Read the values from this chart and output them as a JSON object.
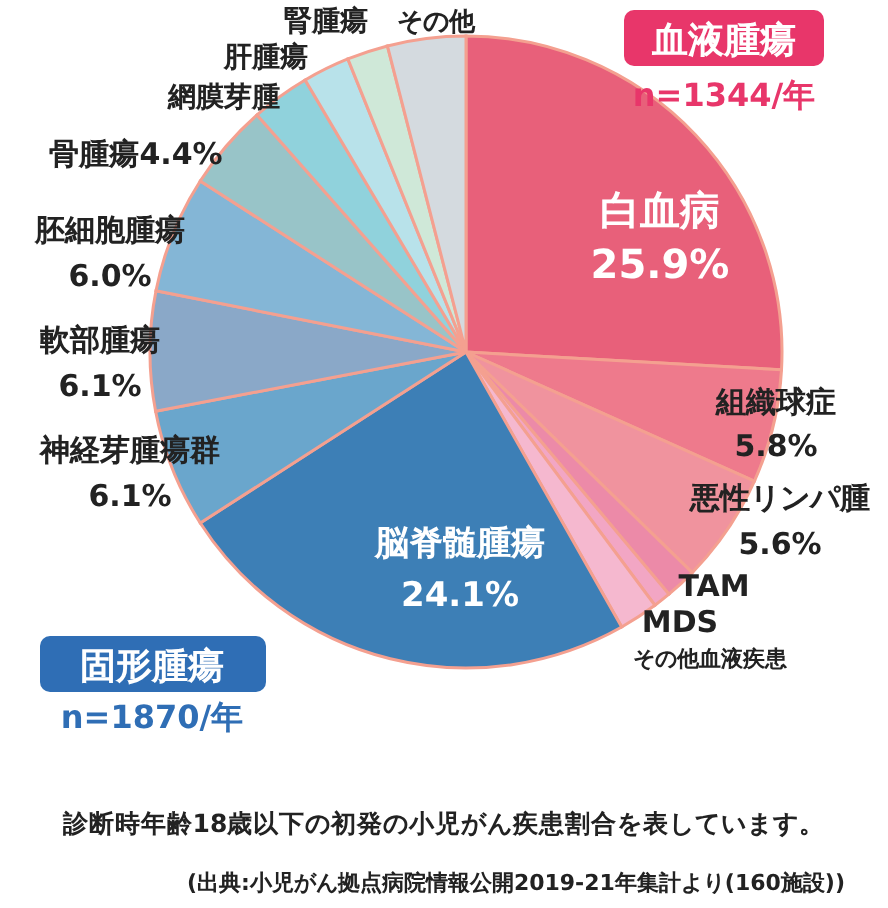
{
  "chart_data": {
    "type": "pie",
    "categories": [
      "白血病",
      "組織球症",
      "悪性リンパ腫",
      "TAM",
      "MDS",
      "その他血液疾患",
      "脳脊髄腫瘍",
      "神経芽腫瘍群",
      "軟部腫瘍",
      "胚細胞腫瘍",
      "骨腫瘍",
      "網膜芽腫",
      "肝腫瘍",
      "腎腫瘍",
      "その他"
    ],
    "values": [
      25.9,
      5.8,
      5.6,
      1.6,
      0.9,
      2.0,
      24.1,
      6.1,
      6.1,
      6.0,
      4.4,
      3.0,
      2.4,
      2.1,
      4.0
    ],
    "value_labels": [
      "25.9%",
      "5.8%",
      "5.6%",
      null,
      null,
      null,
      "24.1%",
      "6.1%",
      "6.1%",
      "6.0%",
      "4.4%",
      null,
      null,
      null,
      null
    ],
    "colors": [
      "#e8607a",
      "#ee7a8c",
      "#f0939e",
      "#ec8aa8",
      "#f2a6c4",
      "#f5b8cf",
      "#3d7fb6",
      "#6aa6cc",
      "#8aa8c8",
      "#84b6d6",
      "#98c4c8",
      "#90d2dc",
      "#b8e2ea",
      "#cfe8d8",
      "#d4dadf"
    ],
    "annotations": [
      "血液腫瘍",
      "n=1344/年",
      "固形腫瘍",
      "n=1870/年",
      "診断時年齢18歳以下の初発の小児がん疾患割合を表しています。",
      "(出典:小児がん拠点病院情報公開2019-21年集計より(160施設))"
    ]
  }
}
